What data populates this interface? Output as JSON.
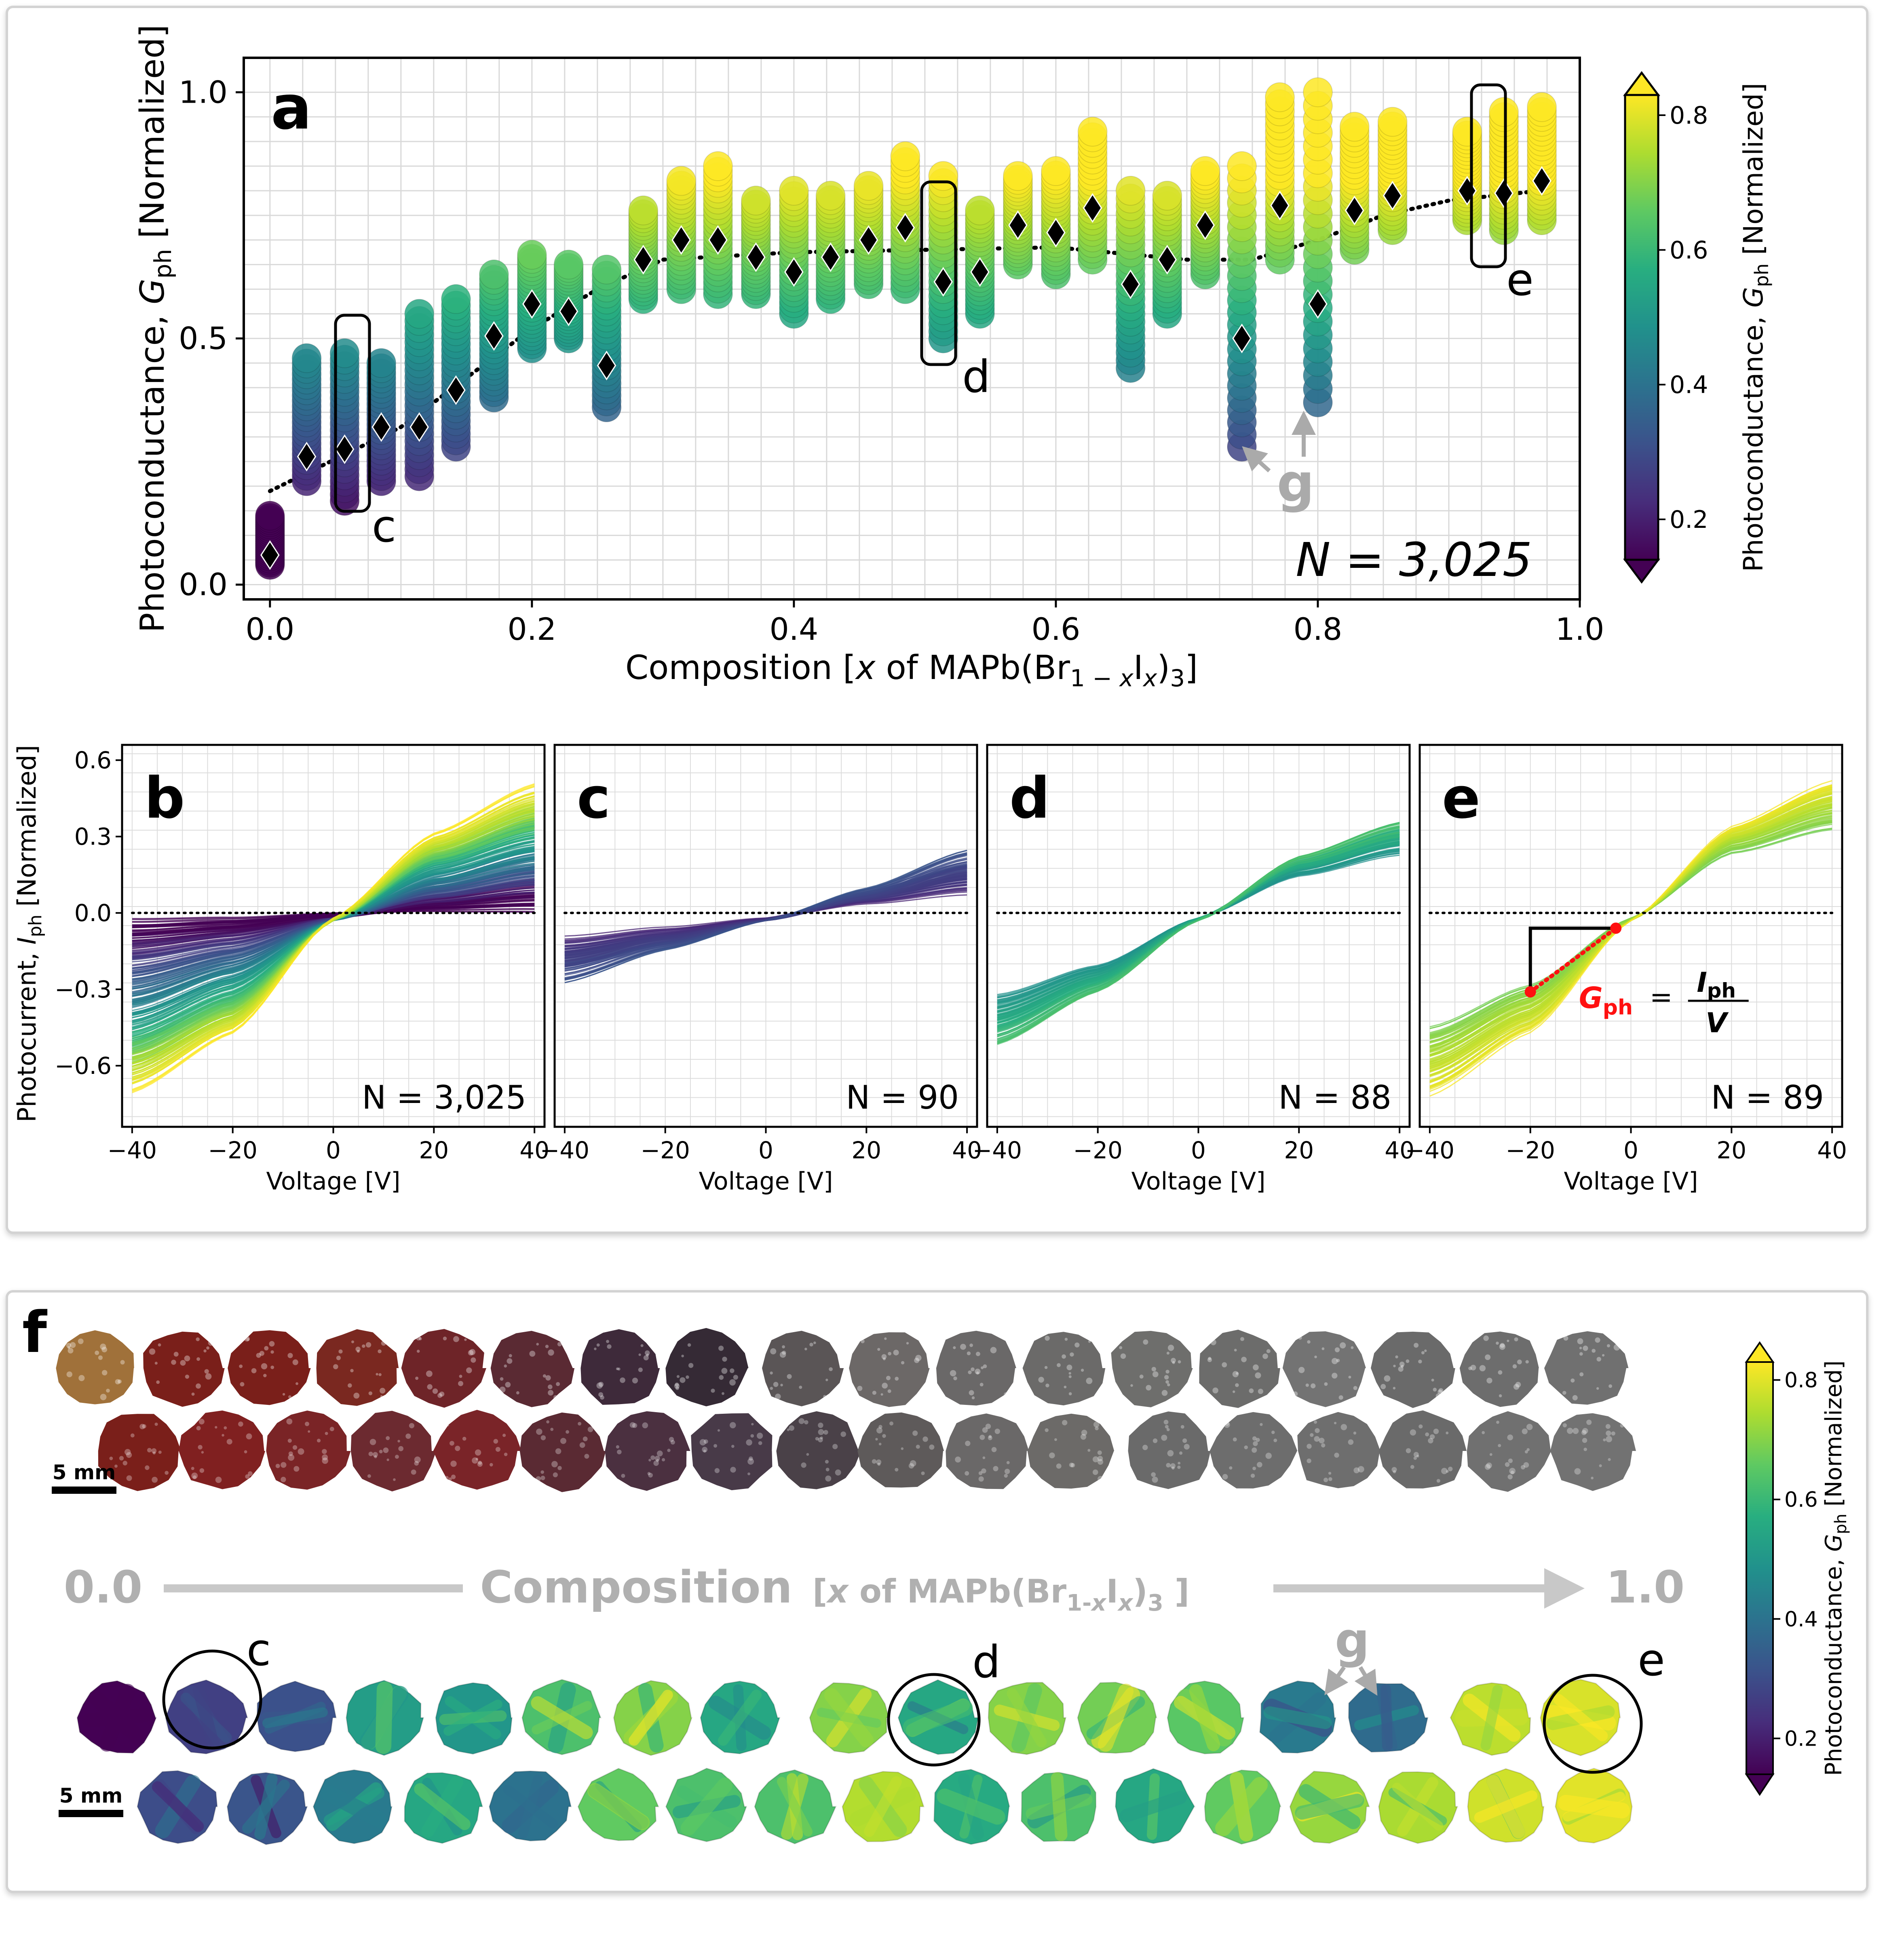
{
  "panel_a": {
    "letter": "a",
    "n_label": "N = 3,025",
    "callouts": [
      "c",
      "d",
      "e"
    ],
    "g_label": "g"
  },
  "colorbar": {
    "label": "Photoconductance, Gph [Normalized]",
    "ticks": [
      "0.2",
      "0.4",
      "0.6",
      "0.8"
    ],
    "tick_values": [
      0.2,
      0.4,
      0.6,
      0.8
    ],
    "range": [
      0.14,
      0.83
    ],
    "colors": [
      "#440154",
      "#472d7b",
      "#3b528b",
      "#2c728e",
      "#21918c",
      "#28ae80",
      "#5ec962",
      "#addc30",
      "#fde725"
    ]
  },
  "panel_f": {
    "letter": "f",
    "scalebar_top": "5 mm",
    "scalebar_bottom": "5 mm",
    "axis_start": "0.0",
    "axis_end": "1.0",
    "axis_title": "Composition",
    "axis_subtitle": "[x of MAPb(Br1-xIx)3 ]",
    "callouts": [
      "c",
      "d",
      "e"
    ],
    "g_label": "g",
    "top_row_upper_colors": [
      "#a0713a",
      "#7a1f1a",
      "#7a1f1a",
      "#7a2820",
      "#6e2428",
      "#5a2a33",
      "#3e2a3a",
      "#352a35",
      "#5a5556",
      "#6c6867",
      "#6a6868",
      "#6b6a69",
      "#6e6e6c",
      "#6c6c6b",
      "#737373",
      "#6a6a6a",
      "#6d6d6d",
      "#707070"
    ],
    "top_row_lower_colors": [
      "#7a1f1a",
      "#802020",
      "#7a2426",
      "#6c2a30",
      "#7a2428",
      "#5a2a33",
      "#4b3040",
      "#483a48",
      "#4a4148",
      "#5e5a5a",
      "#6a6868",
      "#6c6a68",
      "#6a6a6a",
      "#6d6d6d",
      "#6e6e6e",
      "#6a6a6a",
      "#707070",
      "#727272"
    ],
    "map_upper_values": [
      0.05,
      0.27,
      0.31,
      0.52,
      0.5,
      0.63,
      0.7,
      0.55,
      0.7,
      0.55,
      0.7,
      0.68,
      0.65,
      0.42,
      0.38,
      0.76,
      0.79
    ],
    "map_lower_values": [
      0.3,
      0.32,
      0.42,
      0.55,
      0.4,
      0.66,
      0.63,
      0.63,
      0.75,
      0.56,
      0.63,
      0.55,
      0.66,
      0.72,
      0.74,
      0.78,
      0.8
    ]
  },
  "chart_data": [
    {
      "id": "a",
      "type": "scatter",
      "xlabel": "Composition [x of MAPb(Br1−xIx)3]",
      "ylabel": "Photoconductance, Gph [Normalized]",
      "xlim": [
        -0.02,
        1.0
      ],
      "ylim": [
        -0.03,
        1.07
      ],
      "xticks": [
        0.0,
        0.2,
        0.4,
        0.6,
        0.8,
        1.0
      ],
      "xtick_labels": [
        "0.0",
        "0.2",
        "0.4",
        "0.6",
        "0.8",
        "1.0"
      ],
      "yticks": [
        0.0,
        0.5,
        1.0
      ],
      "ytick_labels": [
        "0.0",
        "0.5",
        "1.0"
      ],
      "columns": [
        {
          "x": 0.0,
          "min": 0.04,
          "max": 0.14,
          "median": 0.06
        },
        {
          "x": 0.028,
          "min": 0.21,
          "max": 0.46,
          "median": 0.26
        },
        {
          "x": 0.057,
          "min": 0.17,
          "max": 0.47,
          "median": 0.275
        },
        {
          "x": 0.085,
          "min": 0.21,
          "max": 0.45,
          "median": 0.32
        },
        {
          "x": 0.114,
          "min": 0.22,
          "max": 0.55,
          "median": 0.32
        },
        {
          "x": 0.142,
          "min": 0.28,
          "max": 0.58,
          "median": 0.395
        },
        {
          "x": 0.171,
          "min": 0.38,
          "max": 0.63,
          "median": 0.505
        },
        {
          "x": 0.2,
          "min": 0.48,
          "max": 0.67,
          "median": 0.57
        },
        {
          "x": 0.228,
          "min": 0.5,
          "max": 0.65,
          "median": 0.555
        },
        {
          "x": 0.257,
          "min": 0.36,
          "max": 0.64,
          "median": 0.445
        },
        {
          "x": 0.285,
          "min": 0.58,
          "max": 0.76,
          "median": 0.66
        },
        {
          "x": 0.314,
          "min": 0.6,
          "max": 0.82,
          "median": 0.7
        },
        {
          "x": 0.342,
          "min": 0.59,
          "max": 0.85,
          "median": 0.7
        },
        {
          "x": 0.371,
          "min": 0.59,
          "max": 0.78,
          "median": 0.665
        },
        {
          "x": 0.4,
          "min": 0.55,
          "max": 0.8,
          "median": 0.635
        },
        {
          "x": 0.428,
          "min": 0.58,
          "max": 0.79,
          "median": 0.665
        },
        {
          "x": 0.457,
          "min": 0.61,
          "max": 0.81,
          "median": 0.7
        },
        {
          "x": 0.485,
          "min": 0.6,
          "max": 0.87,
          "median": 0.725
        },
        {
          "x": 0.514,
          "min": 0.5,
          "max": 0.83,
          "median": 0.615
        },
        {
          "x": 0.542,
          "min": 0.55,
          "max": 0.76,
          "median": 0.635
        },
        {
          "x": 0.571,
          "min": 0.65,
          "max": 0.83,
          "median": 0.73
        },
        {
          "x": 0.6,
          "min": 0.63,
          "max": 0.84,
          "median": 0.715
        },
        {
          "x": 0.628,
          "min": 0.66,
          "max": 0.92,
          "median": 0.765
        },
        {
          "x": 0.657,
          "min": 0.44,
          "max": 0.8,
          "median": 0.61
        },
        {
          "x": 0.685,
          "min": 0.55,
          "max": 0.79,
          "median": 0.66
        },
        {
          "x": 0.714,
          "min": 0.63,
          "max": 0.84,
          "median": 0.73
        },
        {
          "x": 0.742,
          "min": 0.28,
          "max": 0.85,
          "median": 0.5
        },
        {
          "x": 0.771,
          "min": 0.66,
          "max": 0.99,
          "median": 0.77
        },
        {
          "x": 0.8,
          "min": 0.37,
          "max": 1.0,
          "median": 0.57
        },
        {
          "x": 0.828,
          "min": 0.68,
          "max": 0.93,
          "median": 0.76
        },
        {
          "x": 0.857,
          "min": 0.72,
          "max": 0.94,
          "median": 0.79
        },
        {
          "x": 0.914,
          "min": 0.74,
          "max": 0.92,
          "median": 0.8
        },
        {
          "x": 0.942,
          "min": 0.72,
          "max": 0.96,
          "median": 0.795
        },
        {
          "x": 0.971,
          "min": 0.74,
          "max": 0.97,
          "median": 0.82
        }
      ],
      "trend": {
        "x": [
          0.0,
          0.1,
          0.2,
          0.25,
          0.3,
          0.4,
          0.5,
          0.6,
          0.7,
          0.75,
          0.8,
          0.85,
          0.9,
          0.97
        ],
        "y": [
          0.19,
          0.32,
          0.52,
          0.6,
          0.66,
          0.675,
          0.68,
          0.685,
          0.66,
          0.66,
          0.7,
          0.75,
          0.78,
          0.8
        ]
      }
    },
    {
      "id": "b",
      "type": "line",
      "xlabel": "Voltage [V]",
      "ylabel": "Photocurrent, Iph [Normalized]",
      "xlim": [
        -42,
        42
      ],
      "ylim": [
        -0.84,
        0.66
      ],
      "xticks": [
        -40,
        -20,
        0,
        20,
        40
      ],
      "xtick_labels": [
        "−40",
        "−20",
        "0",
        "20",
        "40"
      ],
      "yticks": [
        -0.6,
        -0.3,
        0.0,
        0.3,
        0.6
      ],
      "ytick_labels": [
        "−0.6",
        "−0.3",
        "0.0",
        "0.3",
        "0.6"
      ],
      "n_label": "N = 3,025",
      "series": [
        {
          "g": 0.05,
          "v": [
            -40,
            -20,
            0,
            20,
            40
          ],
          "i": [
            -0.05,
            -0.03,
            0.0,
            0.02,
            0.03
          ]
        },
        {
          "g": 0.15,
          "v": [
            -40,
            -20,
            0,
            20,
            40
          ],
          "i": [
            -0.1,
            -0.07,
            -0.02,
            0.04,
            0.08
          ]
        },
        {
          "g": 0.25,
          "v": [
            -40,
            -20,
            0,
            20,
            40
          ],
          "i": [
            -0.18,
            -0.12,
            -0.02,
            0.07,
            0.13
          ]
        },
        {
          "g": 0.35,
          "v": [
            -40,
            -20,
            0,
            20,
            40
          ],
          "i": [
            -0.28,
            -0.18,
            -0.03,
            0.1,
            0.18
          ]
        },
        {
          "g": 0.45,
          "v": [
            -40,
            -20,
            0,
            20,
            40
          ],
          "i": [
            -0.38,
            -0.24,
            -0.03,
            0.14,
            0.24
          ]
        },
        {
          "g": 0.55,
          "v": [
            -40,
            -20,
            0,
            20,
            40
          ],
          "i": [
            -0.46,
            -0.3,
            -0.03,
            0.19,
            0.3
          ]
        },
        {
          "g": 0.65,
          "v": [
            -40,
            -20,
            0,
            20,
            40
          ],
          "i": [
            -0.53,
            -0.36,
            -0.03,
            0.22,
            0.35
          ]
        },
        {
          "g": 0.75,
          "v": [
            -40,
            -20,
            0,
            20,
            40
          ],
          "i": [
            -0.6,
            -0.41,
            -0.03,
            0.26,
            0.41
          ]
        },
        {
          "g": 0.82,
          "v": [
            -40,
            -20,
            0,
            20,
            40
          ],
          "i": [
            -0.68,
            -0.46,
            -0.02,
            0.3,
            0.48
          ]
        }
      ]
    },
    {
      "id": "c",
      "type": "line",
      "xlabel": "Voltage [V]",
      "xlim": [
        -42,
        42
      ],
      "ylim": [
        -0.84,
        0.66
      ],
      "xticks": [
        -40,
        -20,
        0,
        20,
        40
      ],
      "xtick_labels": [
        "−40",
        "−20",
        "0",
        "20",
        "40"
      ],
      "n_label": "N = 90",
      "series": [
        {
          "g": 0.22,
          "v": [
            -40,
            -20,
            0,
            20,
            40
          ],
          "i": [
            -0.12,
            -0.07,
            -0.02,
            0.05,
            0.1
          ]
        },
        {
          "g": 0.28,
          "v": [
            -40,
            -20,
            0,
            20,
            40
          ],
          "i": [
            -0.18,
            -0.11,
            -0.03,
            0.07,
            0.16
          ]
        },
        {
          "g": 0.3,
          "v": [
            -40,
            -20,
            0,
            20,
            40
          ],
          "i": [
            -0.25,
            -0.13,
            -0.03,
            0.08,
            0.22
          ]
        }
      ]
    },
    {
      "id": "d",
      "type": "line",
      "xlabel": "Voltage [V]",
      "xlim": [
        -42,
        42
      ],
      "ylim": [
        -0.84,
        0.66
      ],
      "xticks": [
        -40,
        -20,
        0,
        20,
        40
      ],
      "xtick_labels": [
        "−40",
        "−20",
        "0",
        "20",
        "40"
      ],
      "n_label": "N = 88",
      "series": [
        {
          "g": 0.5,
          "v": [
            -40,
            -20,
            0,
            20,
            40
          ],
          "i": [
            -0.35,
            -0.22,
            -0.02,
            0.16,
            0.26
          ]
        },
        {
          "g": 0.55,
          "v": [
            -40,
            -20,
            0,
            20,
            40
          ],
          "i": [
            -0.42,
            -0.26,
            -0.02,
            0.19,
            0.3
          ]
        },
        {
          "g": 0.62,
          "v": [
            -40,
            -20,
            0,
            20,
            40
          ],
          "i": [
            -0.5,
            -0.3,
            -0.03,
            0.21,
            0.33
          ]
        }
      ]
    },
    {
      "id": "e",
      "type": "line",
      "xlabel": "Voltage [V]",
      "xlim": [
        -42,
        42
      ],
      "ylim": [
        -0.84,
        0.66
      ],
      "xticks": [
        -40,
        -20,
        0,
        20,
        40
      ],
      "xtick_labels": [
        "−40",
        "−20",
        "0",
        "20",
        "40"
      ],
      "n_label": "N = 89",
      "annotation": {
        "formula": "Gph = Iph / V",
        "x1": -20,
        "y1": -0.31,
        "x2": -3,
        "y2": -0.06
      },
      "series": [
        {
          "g": 0.7,
          "v": [
            -40,
            -20,
            0,
            20,
            40
          ],
          "i": [
            -0.48,
            -0.3,
            -0.02,
            0.25,
            0.36
          ]
        },
        {
          "g": 0.76,
          "v": [
            -40,
            -20,
            0,
            20,
            40
          ],
          "i": [
            -0.58,
            -0.38,
            -0.03,
            0.3,
            0.44
          ]
        },
        {
          "g": 0.8,
          "v": [
            -40,
            -20,
            0,
            20,
            40
          ],
          "i": [
            -0.68,
            -0.45,
            -0.03,
            0.32,
            0.48
          ]
        }
      ]
    }
  ]
}
